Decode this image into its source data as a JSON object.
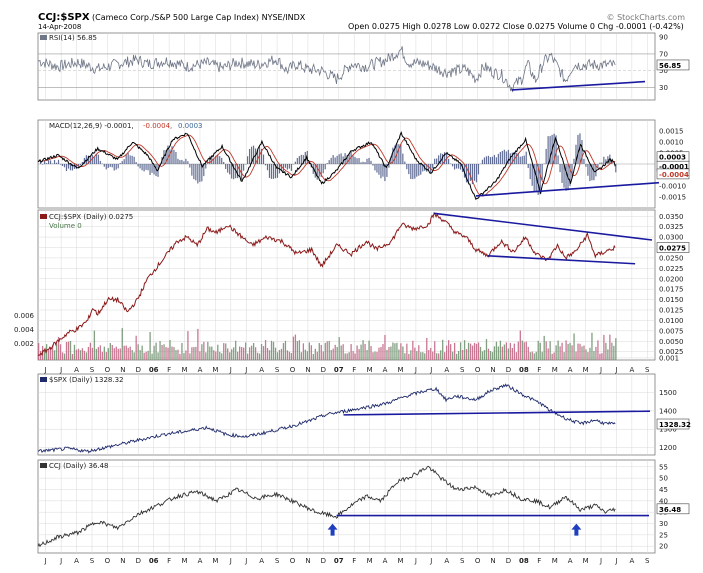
{
  "header": {
    "symbol": "CCJ:$SPX",
    "description": "(Cameco Corp./S&P 500 Large Cap Index) NYSE/INDX",
    "date": "14-Apr-2008",
    "ohlc": "Open 0.0275  High 0.0278  Low 0.0272  Close 0.0275  Volume 0  Chg -0.0001 (-0.42%)",
    "source": "© StockCharts.com",
    "chg_arrow": "▼"
  },
  "colors": {
    "price": "#8b1a1a",
    "line": "#1f2a6b",
    "trend": "#1a1aa0",
    "rsi": "#6f7687",
    "macd": "#000000",
    "signal": "#c0392b",
    "hist": "#3b4a7a",
    "vol_up": "#6b8e6b",
    "vol_down": "#c06080",
    "grid": "#d9d9d9",
    "axis": "#7a7a7a",
    "arrow": "#1f3fbf"
  },
  "x_labels": [
    "J",
    "J",
    "A",
    "S",
    "O",
    "N",
    "D",
    "06",
    "F",
    "M",
    "A",
    "M",
    "J",
    "J",
    "A",
    "S",
    "O",
    "N",
    "D",
    "07",
    "F",
    "M",
    "A",
    "M",
    "J",
    "J",
    "A",
    "S",
    "O",
    "N",
    "D",
    "08",
    "F",
    "M",
    "A",
    "M",
    "J",
    "J",
    "A",
    "S"
  ],
  "chart_data": [
    {
      "type": "line",
      "title": "RSI(14) 56.85",
      "legend": "RSI(14) 56.85",
      "last_label": "56.85",
      "y_ticks": [
        30,
        50,
        70,
        90
      ],
      "ylim": [
        15,
        95
      ],
      "ref_lines": [
        30,
        70
      ],
      "anchors": [
        [
          0,
          62
        ],
        [
          20,
          55
        ],
        [
          40,
          60
        ],
        [
          60,
          52
        ],
        [
          80,
          58
        ],
        [
          100,
          63
        ],
        [
          110,
          58
        ],
        [
          130,
          62
        ],
        [
          150,
          55
        ],
        [
          170,
          59
        ],
        [
          185,
          53
        ],
        [
          200,
          60
        ],
        [
          220,
          57
        ],
        [
          240,
          64
        ],
        [
          250,
          50
        ],
        [
          260,
          58
        ],
        [
          270,
          52
        ],
        [
          285,
          50
        ],
        [
          300,
          40
        ],
        [
          315,
          58
        ],
        [
          330,
          55
        ],
        [
          350,
          63
        ],
        [
          365,
          75
        ],
        [
          372,
          60
        ],
        [
          390,
          58
        ],
        [
          410,
          48
        ],
        [
          430,
          52
        ],
        [
          440,
          40
        ],
        [
          448,
          55
        ],
        [
          458,
          48
        ],
        [
          466,
          45
        ],
        [
          476,
          30
        ],
        [
          486,
          40
        ],
        [
          492,
          58
        ],
        [
          500,
          38
        ],
        [
          508,
          60
        ],
        [
          515,
          68
        ],
        [
          522,
          55
        ],
        [
          530,
          38
        ],
        [
          538,
          56.85
        ]
      ]
    },
    {
      "type": "line",
      "title": "MACD(12,26,9) -0.0001, -0.0004, 0.0003",
      "legend": {
        "name": "MACD(12,26,9)",
        "macd": "-0.0001",
        "signal": "-0.0004",
        "hist": "0.0003"
      },
      "y_ticks": [
        "0.0015",
        "0.0010",
        "0.0005",
        "0.0000",
        "-0.0005",
        "-0.0010",
        "-0.0015"
      ],
      "ylim": [
        -0.002,
        0.002
      ],
      "last_labels": [
        "0.0003",
        "-0.0001",
        "-0.0004"
      ],
      "anchors": [
        [
          0,
          0.0001
        ],
        [
          20,
          0.0004
        ],
        [
          40,
          -0.0002
        ],
        [
          60,
          0.0007
        ],
        [
          80,
          0.0002
        ],
        [
          95,
          0.001
        ],
        [
          110,
          0.0004
        ],
        [
          120,
          -0.0003
        ],
        [
          135,
          0.0011
        ],
        [
          150,
          0.0014
        ],
        [
          165,
          -0.0001
        ],
        [
          185,
          0.0008
        ],
        [
          205,
          -0.0008
        ],
        [
          225,
          0.001
        ],
        [
          240,
          -0.0002
        ],
        [
          255,
          -0.0006
        ],
        [
          270,
          0.0003
        ],
        [
          285,
          -0.0009
        ],
        [
          300,
          -0.0003
        ],
        [
          315,
          0.0006
        ],
        [
          335,
          0.001
        ],
        [
          350,
          -0.0002
        ],
        [
          365,
          0.0014
        ],
        [
          380,
          0.0002
        ],
        [
          395,
          -0.0004
        ],
        [
          410,
          0.0005
        ],
        [
          425,
          0.0
        ],
        [
          440,
          -0.0016
        ],
        [
          460,
          -0.0008
        ],
        [
          475,
          0.0003
        ],
        [
          490,
          0.0011
        ],
        [
          505,
          -0.0013
        ],
        [
          520,
          0.0012
        ],
        [
          535,
          -0.0009
        ],
        [
          545,
          0.0009
        ],
        [
          560,
          -0.0004
        ],
        [
          575,
          0.0002
        ],
        [
          590,
          -0.0001
        ]
      ]
    },
    {
      "type": "line",
      "title": "CCJ:$SPX (Daily) 0.0275",
      "legend": "CCJ:$SPX (Daily) 0.0275",
      "volume_legend": "Volume 0",
      "last_label": "0.0275",
      "y_ticks": [
        "0.0350",
        "0.0325",
        "0.0300",
        "0.0275",
        "0.0250",
        "0.0225",
        "0.0200",
        "0.0175",
        "0.0150",
        "0.0125",
        "0.0100",
        "0.0075",
        "0.0050",
        "0.0025",
        "0.001"
      ],
      "ylim": [
        0.0005,
        0.0365
      ],
      "vol_ticks": [
        "0.006",
        "0.004",
        "0.002"
      ],
      "anchors": [
        [
          0,
          0.0017
        ],
        [
          10,
          0.003
        ],
        [
          20,
          0.005
        ],
        [
          30,
          0.007
        ],
        [
          40,
          0.008
        ],
        [
          50,
          0.01
        ],
        [
          55,
          0.013
        ],
        [
          60,
          0.0115
        ],
        [
          70,
          0.015
        ],
        [
          80,
          0.015
        ],
        [
          90,
          0.012
        ],
        [
          100,
          0.015
        ],
        [
          110,
          0.02
        ],
        [
          120,
          0.023
        ],
        [
          130,
          0.026
        ],
        [
          140,
          0.029
        ],
        [
          150,
          0.03
        ],
        [
          160,
          0.028
        ],
        [
          170,
          0.032
        ],
        [
          180,
          0.031
        ],
        [
          190,
          0.033
        ],
        [
          200,
          0.031
        ],
        [
          215,
          0.028
        ],
        [
          230,
          0.03
        ],
        [
          245,
          0.029
        ],
        [
          260,
          0.026
        ],
        [
          275,
          0.027
        ],
        [
          285,
          0.023
        ],
        [
          300,
          0.028
        ],
        [
          315,
          0.026
        ],
        [
          330,
          0.029
        ],
        [
          340,
          0.027
        ],
        [
          355,
          0.029
        ],
        [
          365,
          0.033
        ],
        [
          378,
          0.032
        ],
        [
          392,
          0.033
        ],
        [
          398,
          0.0355
        ],
        [
          408,
          0.034
        ],
        [
          420,
          0.031
        ],
        [
          430,
          0.03
        ],
        [
          440,
          0.027
        ],
        [
          452,
          0.0255
        ],
        [
          465,
          0.029
        ],
        [
          478,
          0.0265
        ],
        [
          490,
          0.03
        ],
        [
          500,
          0.026
        ],
        [
          512,
          0.0245
        ],
        [
          522,
          0.028
        ],
        [
          530,
          0.025
        ],
        [
          540,
          0.0265
        ],
        [
          552,
          0.0305
        ],
        [
          560,
          0.0255
        ],
        [
          570,
          0.0265
        ],
        [
          580,
          0.0275
        ]
      ]
    },
    {
      "type": "line",
      "title": "$SPX (Daily) 1328.32",
      "legend": "$SPX (Daily) 1328.32",
      "last_label": "1328.32",
      "y_ticks": [
        "1500",
        "1400",
        "1300",
        "1200"
      ],
      "ylim": [
        1160,
        1600
      ],
      "anchors": [
        [
          0,
          1180
        ],
        [
          30,
          1195
        ],
        [
          50,
          1180
        ],
        [
          80,
          1215
        ],
        [
          100,
          1240
        ],
        [
          130,
          1275
        ],
        [
          150,
          1290
        ],
        [
          170,
          1310
        ],
        [
          190,
          1270
        ],
        [
          210,
          1260
        ],
        [
          235,
          1290
        ],
        [
          250,
          1310
        ],
        [
          270,
          1340
        ],
        [
          290,
          1380
        ],
        [
          310,
          1400
        ],
        [
          330,
          1420
        ],
        [
          350,
          1440
        ],
        [
          370,
          1480
        ],
        [
          390,
          1510
        ],
        [
          400,
          1520
        ],
        [
          410,
          1460
        ],
        [
          420,
          1480
        ],
        [
          440,
          1460
        ],
        [
          455,
          1510
        ],
        [
          470,
          1540
        ],
        [
          480,
          1510
        ],
        [
          490,
          1480
        ],
        [
          505,
          1440
        ],
        [
          515,
          1400
        ],
        [
          530,
          1360
        ],
        [
          545,
          1330
        ],
        [
          560,
          1350
        ],
        [
          570,
          1330
        ],
        [
          580,
          1328.32
        ]
      ]
    },
    {
      "type": "line",
      "title": "CCJ (Daily) 36.48",
      "legend": "CCJ (Daily) 36.48",
      "last_label": "36.48",
      "y_ticks": [
        "55",
        "50",
        "45",
        "40",
        "35",
        "30",
        "25",
        "20"
      ],
      "ylim": [
        17,
        58
      ],
      "anchors": [
        [
          0,
          20
        ],
        [
          20,
          24
        ],
        [
          40,
          26
        ],
        [
          60,
          31
        ],
        [
          80,
          28
        ],
        [
          100,
          34
        ],
        [
          120,
          38
        ],
        [
          140,
          42
        ],
        [
          160,
          44
        ],
        [
          180,
          40
        ],
        [
          200,
          45
        ],
        [
          220,
          41
        ],
        [
          240,
          43
        ],
        [
          260,
          39
        ],
        [
          280,
          35
        ],
        [
          300,
          33
        ],
        [
          315,
          38
        ],
        [
          330,
          42
        ],
        [
          345,
          40
        ],
        [
          360,
          48
        ],
        [
          380,
          52
        ],
        [
          392,
          55
        ],
        [
          405,
          50
        ],
        [
          420,
          45
        ],
        [
          440,
          46
        ],
        [
          455,
          42
        ],
        [
          470,
          45
        ],
        [
          485,
          41
        ],
        [
          500,
          40
        ],
        [
          515,
          37
        ],
        [
          530,
          42
        ],
        [
          545,
          36
        ],
        [
          560,
          38
        ],
        [
          570,
          35
        ],
        [
          580,
          36.48
        ]
      ]
    }
  ]
}
